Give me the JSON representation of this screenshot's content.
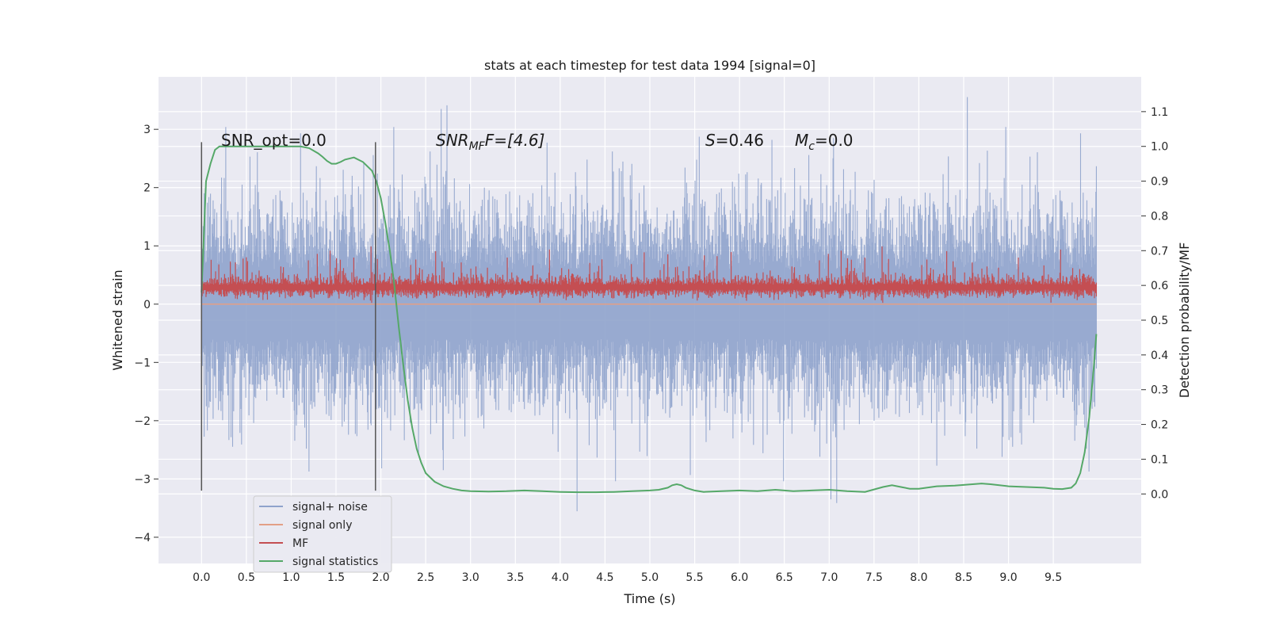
{
  "chart_data": {
    "type": "line",
    "title": "stats at each timestep for test data 1994 [signal=0]",
    "xlabel": "Time (s)",
    "ylabel_left": "Whitened strain",
    "ylabel_right": "Detection probability/MF",
    "xlim": [
      -0.48,
      10.48
    ],
    "ylim_left": [
      -4.45,
      3.9
    ],
    "ylim_right": [
      -0.2,
      1.2
    ],
    "grid": true,
    "x_ticks": [
      "0.0",
      "0.5",
      "1.0",
      "1.5",
      "2.0",
      "2.5",
      "3.0",
      "3.5",
      "4.0",
      "4.5",
      "5.0",
      "5.5",
      "6.0",
      "6.5",
      "7.0",
      "7.5",
      "8.0",
      "8.5",
      "9.0",
      "9.5"
    ],
    "y_ticks_left": [
      "3",
      "2",
      "1",
      "0",
      "−1",
      "−2",
      "−3",
      "−4"
    ],
    "y_ticks_right": [
      "1.1",
      "1.0",
      "0.9",
      "0.8",
      "0.7",
      "0.6",
      "0.5",
      "0.4",
      "0.3",
      "0.2",
      "0.1",
      "0.0"
    ],
    "annotations": {
      "snr_opt": "SNR_opt=0.0",
      "snr_mf_main": "SNR",
      "snr_mf_sub": "MF",
      "snr_mf_rest": "F=[4.6]",
      "s_label": "S",
      "s_value": "=0.46",
      "mc_label": "M",
      "mc_sub": "c",
      "mc_value": "=0.0"
    },
    "window_markers": [
      0.0,
      1.94
    ],
    "series": [
      {
        "name": "signal+ noise",
        "color": "#8fa3cc",
        "kind": "noise",
        "x_range": [
          0.0,
          9.98
        ],
        "approx_range": [
          -4.0,
          3.6
        ]
      },
      {
        "name": "signal only",
        "color": "#e39f86",
        "kind": "flat",
        "values_constant": 0.0
      },
      {
        "name": "MF",
        "color": "#c44e52",
        "kind": "noise",
        "x_range": [
          0.0,
          9.98
        ],
        "approx_range": [
          0.0,
          1.0
        ]
      },
      {
        "name": "signal statistics",
        "color": "#55a868",
        "kind": "line",
        "x": [
          0.0,
          0.05,
          0.1,
          0.15,
          0.2,
          0.3,
          0.5,
          0.8,
          1.0,
          1.1,
          1.2,
          1.3,
          1.35,
          1.4,
          1.45,
          1.5,
          1.55,
          1.6,
          1.7,
          1.8,
          1.9,
          1.95,
          2.0,
          2.05,
          2.1,
          2.15,
          2.2,
          2.25,
          2.3,
          2.35,
          2.4,
          2.45,
          2.5,
          2.6,
          2.7,
          2.8,
          2.9,
          3.0,
          3.2,
          3.4,
          3.6,
          3.8,
          4.0,
          4.2,
          4.4,
          4.6,
          4.8,
          5.0,
          5.1,
          5.2,
          5.25,
          5.3,
          5.35,
          5.4,
          5.5,
          5.6,
          5.8,
          6.0,
          6.2,
          6.4,
          6.6,
          6.8,
          7.0,
          7.2,
          7.4,
          7.6,
          7.7,
          7.8,
          7.9,
          8.0,
          8.2,
          8.4,
          8.6,
          8.7,
          8.8,
          9.0,
          9.2,
          9.4,
          9.5,
          9.6,
          9.7,
          9.75,
          9.8,
          9.85,
          9.9,
          9.95,
          9.98
        ],
        "y": [
          0.58,
          0.9,
          0.95,
          0.99,
          1.0,
          1.0,
          1.0,
          1.0,
          1.0,
          1.0,
          0.995,
          0.98,
          0.97,
          0.958,
          0.95,
          0.95,
          0.955,
          0.962,
          0.968,
          0.955,
          0.93,
          0.9,
          0.85,
          0.78,
          0.7,
          0.6,
          0.48,
          0.37,
          0.27,
          0.19,
          0.13,
          0.09,
          0.06,
          0.035,
          0.022,
          0.015,
          0.01,
          0.008,
          0.007,
          0.008,
          0.01,
          0.008,
          0.006,
          0.005,
          0.005,
          0.006,
          0.008,
          0.01,
          0.012,
          0.018,
          0.025,
          0.028,
          0.025,
          0.018,
          0.01,
          0.006,
          0.008,
          0.01,
          0.008,
          0.012,
          0.008,
          0.01,
          0.012,
          0.008,
          0.006,
          0.02,
          0.025,
          0.02,
          0.015,
          0.015,
          0.022,
          0.024,
          0.028,
          0.03,
          0.028,
          0.022,
          0.02,
          0.018,
          0.015,
          0.014,
          0.018,
          0.03,
          0.06,
          0.12,
          0.22,
          0.36,
          0.46
        ]
      }
    ],
    "legend": {
      "placement": "lower-left",
      "entries": [
        "signal+ noise",
        "signal only",
        "MF",
        "signal statistics"
      ]
    },
    "colors": {
      "background": "#eaeaf2",
      "grid": "#ffffff",
      "marker": "#555555"
    }
  }
}
